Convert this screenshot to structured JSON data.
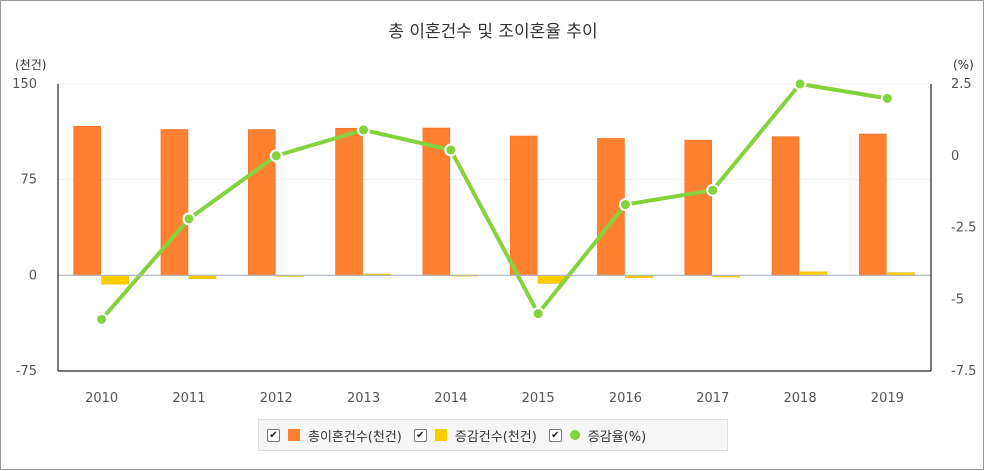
{
  "chart_data": {
    "type": "bar+line",
    "title": "총 이혼건수 및 조이혼율 추이",
    "y_left_unit": "(천건)",
    "y_right_unit": "(%)",
    "y_left_ticks": [
      "150",
      "75",
      "0",
      "-75"
    ],
    "y_right_ticks": [
      "2.5",
      "0",
      "-2.5",
      "-5",
      "-7.5"
    ],
    "ylim_left": [
      -75,
      150
    ],
    "ylim_right": [
      -7.5,
      2.5
    ],
    "categories": [
      "2010",
      "2011",
      "2012",
      "2013",
      "2014",
      "2015",
      "2016",
      "2017",
      "2018",
      "2019"
    ],
    "series": [
      {
        "name": "총이혼건수(천건)",
        "type": "bar",
        "axis": "left",
        "color": "#ff8030",
        "values": [
          116.9,
          114.3,
          114.3,
          115.3,
          115.5,
          109.2,
          107.3,
          106.0,
          108.7,
          110.8
        ]
      },
      {
        "name": "증감건수(천건)",
        "type": "bar",
        "axis": "left",
        "color": "#ffcc00",
        "values": [
          -6.9,
          -2.6,
          0.0,
          1.0,
          0.2,
          -6.3,
          -1.9,
          -1.3,
          2.7,
          2.1
        ]
      },
      {
        "name": "증감율(%)",
        "type": "line",
        "axis": "right",
        "color": "#84d23c",
        "values": [
          -5.7,
          -2.2,
          0.0,
          0.9,
          0.2,
          -5.5,
          -1.7,
          -1.2,
          2.5,
          2.0
        ]
      }
    ],
    "legend_position": "bottom",
    "grid": true
  },
  "legend": {
    "check_glyph": "✔"
  }
}
